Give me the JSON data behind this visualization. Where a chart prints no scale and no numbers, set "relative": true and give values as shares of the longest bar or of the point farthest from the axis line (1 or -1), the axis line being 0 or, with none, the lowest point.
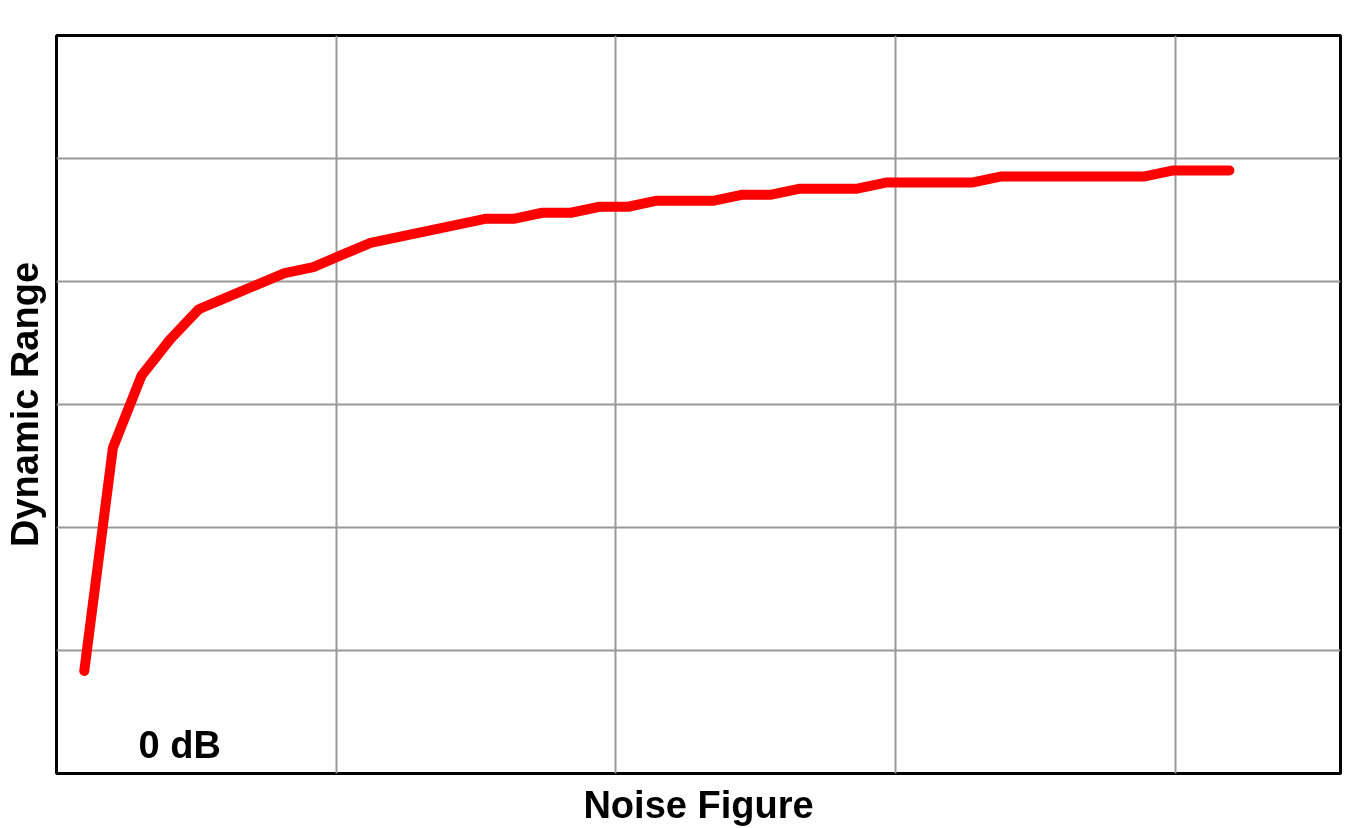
{
  "chart_data": {
    "type": "line",
    "relative": true,
    "xlabel": "Noise Figure",
    "ylabel": "Dynamic Range",
    "annotations": [
      "0 dB"
    ],
    "categories": [
      null,
      null,
      null,
      null,
      null,
      null,
      null,
      null,
      null,
      null,
      null,
      null,
      null,
      null,
      null,
      null,
      null,
      null,
      null,
      null,
      null,
      null,
      null,
      null,
      null,
      null,
      null,
      null,
      null,
      null,
      null,
      null,
      null,
      null,
      null,
      null,
      null,
      null,
      null,
      null,
      null
    ],
    "series": [
      {
        "color": "#ff0000",
        "values": [
          0.17,
          0.54,
          0.66,
          0.72,
          0.77,
          0.79,
          0.81,
          0.83,
          0.84,
          0.86,
          0.88,
          0.89,
          0.9,
          0.91,
          0.92,
          0.92,
          0.93,
          0.93,
          0.94,
          0.94,
          0.95,
          0.95,
          0.95,
          0.96,
          0.96,
          0.97,
          0.97,
          0.97,
          0.98,
          0.98,
          0.98,
          0.98,
          0.99,
          0.99,
          0.99,
          0.99,
          0.99,
          0.99,
          1.0,
          1.0,
          1.0
        ]
      }
    ],
    "grid": true,
    "line_style": "solid"
  }
}
